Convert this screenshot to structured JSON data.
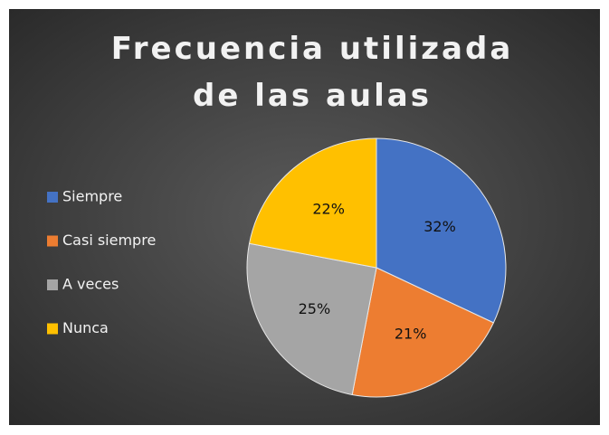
{
  "chart_data": {
    "type": "pie",
    "title": "Frecuencia utilizada de las aulas",
    "categories": [
      "Siempre",
      "Casi siempre",
      "A veces",
      "Nunca"
    ],
    "values": [
      32,
      21,
      25,
      22
    ],
    "value_labels": [
      "32%",
      "21%",
      "25%",
      "22%"
    ],
    "colors": [
      "#4472c4",
      "#ed7d31",
      "#a5a5a5",
      "#ffc000"
    ],
    "legend": "left"
  }
}
